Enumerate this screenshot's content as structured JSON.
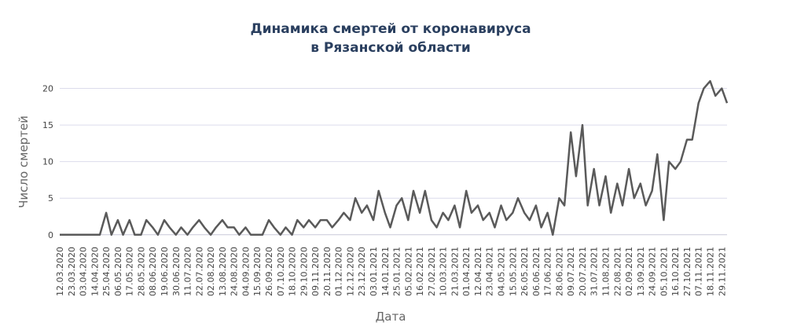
{
  "chart_data": {
    "type": "line",
    "title": [
      "Динамика смертей от коронавируса",
      "в Рязанской области"
    ],
    "x_label": "Дата",
    "y_label": "Число смертей",
    "ylim": [
      -1.1,
      22.1
    ],
    "yticks": [
      0,
      5,
      10,
      15,
      20
    ],
    "grid": true,
    "xlim": [
      "12.03.2020",
      "04.12.2021"
    ],
    "xticks": [
      "12.03.2020",
      "23.03.2020",
      "03.04.2020",
      "14.04.2020",
      "25.04.2020",
      "06.05.2020",
      "17.05.2020",
      "28.05.2020",
      "08.06.2020",
      "19.06.2020",
      "30.06.2020",
      "11.07.2020",
      "22.07.2020",
      "02.08.2020",
      "13.08.2020",
      "24.08.2020",
      "04.09.2020",
      "15.09.2020",
      "26.09.2020",
      "07.10.2020",
      "18.10.2020",
      "29.10.2020",
      "09.11.2020",
      "20.11.2020",
      "01.12.2020",
      "12.12.2020",
      "23.12.2020",
      "03.01.2021",
      "14.01.2021",
      "25.01.2021",
      "05.02.2021",
      "16.02.2021",
      "27.02.2021",
      "10.03.2021",
      "21.03.2021",
      "01.04.2021",
      "12.04.2021",
      "23.04.2021",
      "04.05.2021",
      "15.05.2021",
      "26.05.2021",
      "06.06.2021",
      "17.06.2021",
      "28.06.2021",
      "09.07.2021",
      "20.07.2021",
      "31.07.2021",
      "11.08.2021",
      "22.08.2021",
      "02.09.2021",
      "13.09.2021",
      "24.09.2021",
      "05.10.2021",
      "16.10.2021",
      "27.10.2021",
      "07.11.2021",
      "18.11.2021",
      "29.11.2021"
    ],
    "x": [
      "12.03.2020",
      "17.03.2020",
      "23.03.2020",
      "28.03.2020",
      "03.04.2020",
      "08.04.2020",
      "14.04.2020",
      "19.04.2020",
      "25.04.2020",
      "30.04.2020",
      "06.05.2020",
      "11.05.2020",
      "17.05.2020",
      "22.05.2020",
      "28.05.2020",
      "02.06.2020",
      "08.06.2020",
      "13.06.2020",
      "19.06.2020",
      "24.06.2020",
      "30.06.2020",
      "05.07.2020",
      "11.07.2020",
      "16.07.2020",
      "22.07.2020",
      "27.07.2020",
      "02.08.2020",
      "07.08.2020",
      "13.08.2020",
      "18.08.2020",
      "24.08.2020",
      "29.08.2020",
      "04.09.2020",
      "09.09.2020",
      "15.09.2020",
      "20.09.2020",
      "26.09.2020",
      "01.10.2020",
      "07.10.2020",
      "12.10.2020",
      "18.10.2020",
      "23.10.2020",
      "29.10.2020",
      "03.11.2020",
      "09.11.2020",
      "14.11.2020",
      "20.11.2020",
      "25.11.2020",
      "01.12.2020",
      "06.12.2020",
      "12.12.2020",
      "17.12.2020",
      "23.12.2020",
      "28.12.2020",
      "03.01.2021",
      "08.01.2021",
      "14.01.2021",
      "19.01.2021",
      "25.01.2021",
      "30.01.2021",
      "05.02.2021",
      "10.02.2021",
      "16.02.2021",
      "21.02.2021",
      "27.02.2021",
      "04.03.2021",
      "10.03.2021",
      "15.03.2021",
      "21.03.2021",
      "26.03.2021",
      "01.04.2021",
      "06.04.2021",
      "12.04.2021",
      "17.04.2021",
      "23.04.2021",
      "28.04.2021",
      "04.05.2021",
      "09.05.2021",
      "15.05.2021",
      "20.05.2021",
      "26.05.2021",
      "31.05.2021",
      "06.06.2021",
      "11.06.2021",
      "17.06.2021",
      "22.06.2021",
      "28.06.2021",
      "03.07.2021",
      "09.07.2021",
      "14.07.2021",
      "20.07.2021",
      "25.07.2021",
      "31.07.2021",
      "05.08.2021",
      "11.08.2021",
      "16.08.2021",
      "22.08.2021",
      "27.08.2021",
      "02.09.2021",
      "07.09.2021",
      "13.09.2021",
      "18.09.2021",
      "24.09.2021",
      "29.09.2021",
      "05.10.2021",
      "10.10.2021",
      "16.10.2021",
      "21.10.2021",
      "27.10.2021",
      "01.11.2021",
      "07.11.2021",
      "12.11.2021",
      "18.11.2021",
      "23.11.2021",
      "29.11.2021",
      "04.12.2021"
    ],
    "series": [
      {
        "color": "#5a5a5a",
        "values": [
          0,
          0,
          0,
          0,
          0,
          0,
          0,
          0,
          3,
          0,
          2,
          0,
          2,
          0,
          0,
          2,
          1,
          0,
          2,
          1,
          0,
          1,
          0,
          1,
          2,
          1,
          0,
          1,
          2,
          1,
          1,
          0,
          1,
          0,
          0,
          0,
          2,
          1,
          0,
          1,
          0,
          2,
          1,
          2,
          1,
          2,
          2,
          1,
          2,
          3,
          2,
          5,
          3,
          4,
          2,
          6,
          3,
          1,
          4,
          5,
          2,
          6,
          3,
          6,
          2,
          1,
          3,
          2,
          4,
          1,
          6,
          3,
          4,
          2,
          3,
          1,
          4,
          2,
          3,
          5,
          3,
          2,
          4,
          1,
          3,
          0,
          5,
          4,
          14,
          8,
          15,
          4,
          9,
          4,
          8,
          3,
          7,
          4,
          9,
          5,
          7,
          4,
          6,
          11,
          2,
          10,
          9,
          10,
          13,
          13,
          18,
          20,
          21,
          19,
          20,
          18
        ]
      }
    ]
  }
}
